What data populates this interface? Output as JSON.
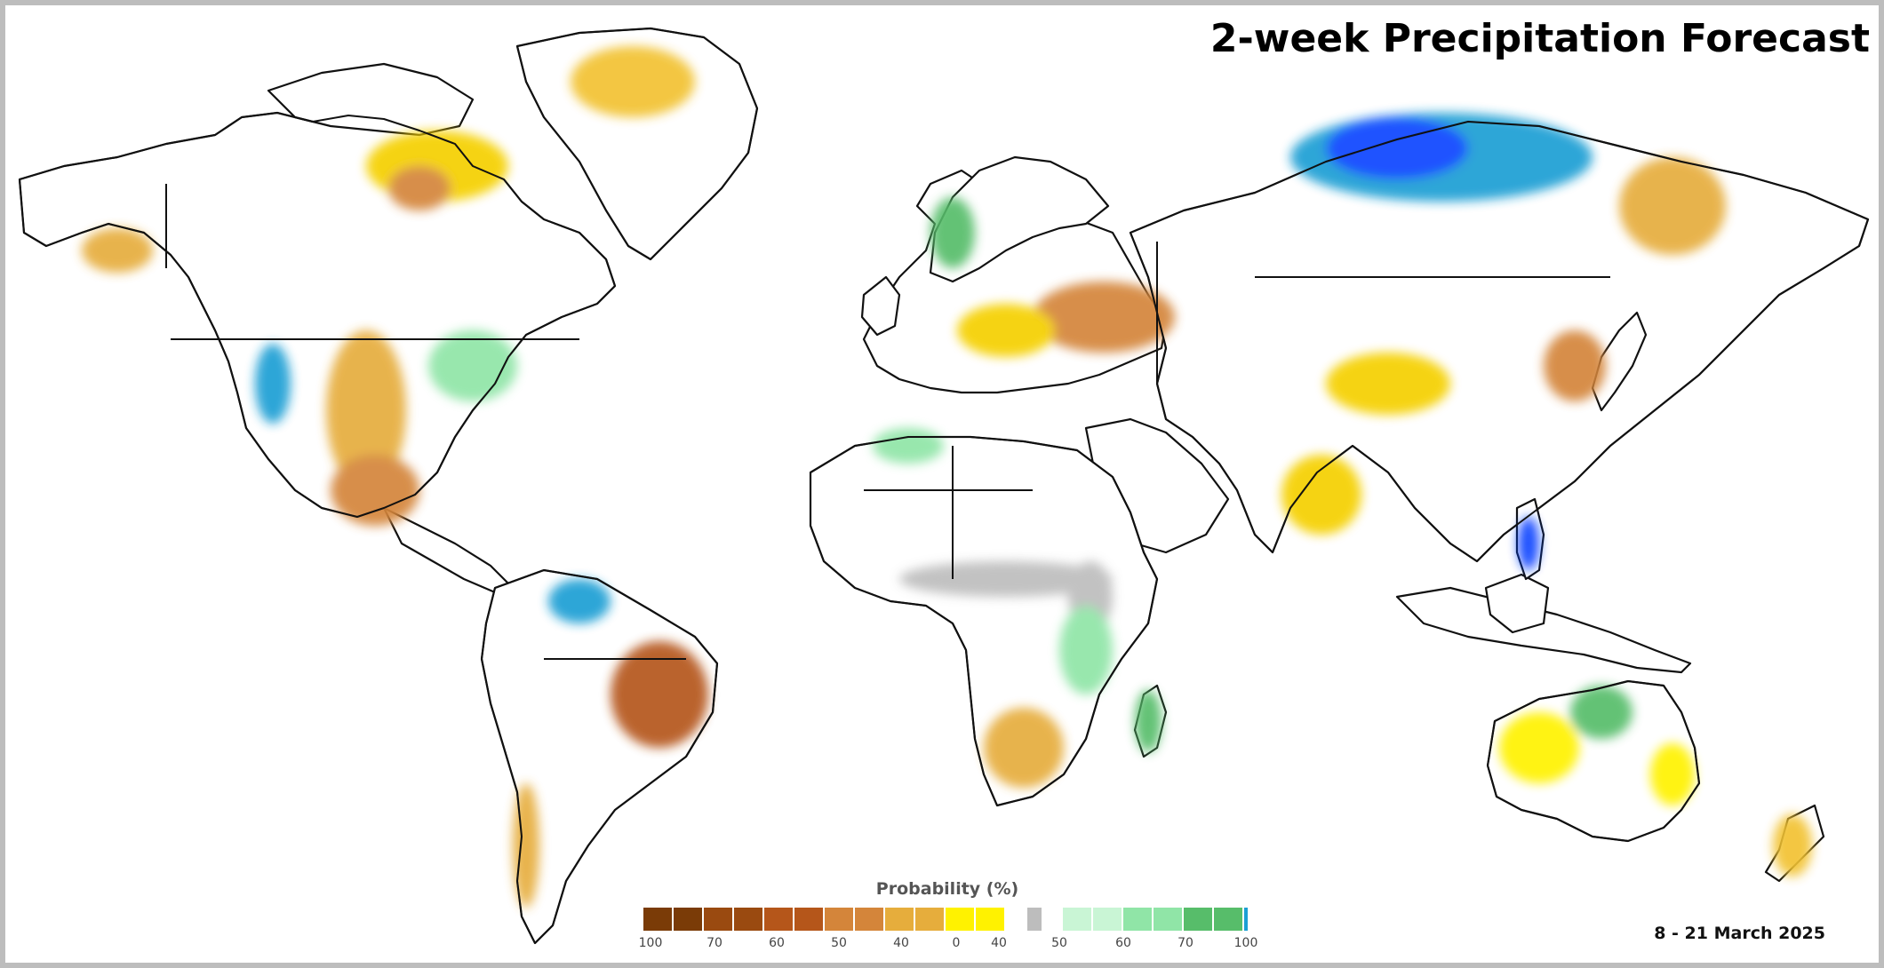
{
  "title": "2-week Precipitation Forecast",
  "date_range": "8 - 21 March 2025",
  "legend": {
    "title": "Probability (%)",
    "dry_colors": [
      "#7a3b07",
      "#9a4a10",
      "#b5561a",
      "#d4853a",
      "#e6ad3c",
      "#fff200"
    ],
    "neutral_color": "#bdbdbd",
    "wet_colors": [
      "#c9f5d5",
      "#90e5a7",
      "#57bd6a",
      "#1b9fd4",
      "#0b45ff"
    ],
    "ticks": [
      "100",
      "70",
      "60",
      "50",
      "40",
      "0",
      "40",
      "50",
      "60",
      "70",
      "100"
    ]
  },
  "colors": {
    "land_fill": "#ffffff",
    "outline": "#111111",
    "frame": "#bdbdbd"
  }
}
